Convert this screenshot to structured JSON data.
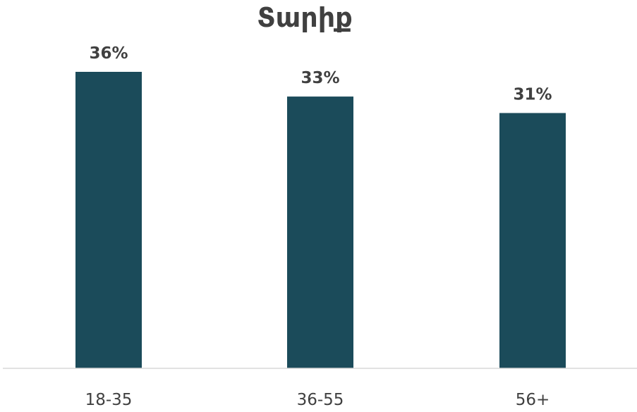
{
  "chart_data": {
    "type": "bar",
    "title": "Տարիք",
    "categories": [
      "18-35",
      "36-55",
      "56+"
    ],
    "values": [
      36,
      33,
      31
    ],
    "value_labels": [
      "36%",
      "33%",
      "31%"
    ],
    "xlabel": "",
    "ylabel": "",
    "ylim": [
      0,
      36
    ],
    "grid": false,
    "legend": "none",
    "colors": {
      "bar": "#1B4B5A",
      "text": "#404040",
      "axis": "#D9D9D9"
    }
  }
}
